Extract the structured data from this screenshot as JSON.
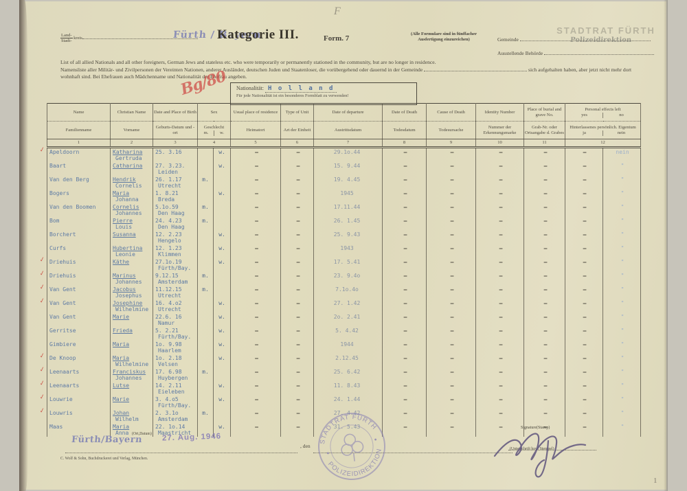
{
  "header": {
    "land_label": "Land-",
    "stadt_label": "Stadt-",
    "kreis_label": "kreis",
    "region_stamp": "Fürth / Bayern",
    "title": "Kategorie III.",
    "form_no": "Form. 7",
    "copies_note_1": "(Alle Formulare sind in fünffacher",
    "copies_note_2": "Ausfertigung einzureichen)",
    "gemeinde_label": "Gemeinde",
    "authority_stamp_1": "STADTRAT FÜRTH",
    "authority_stamp_2": "Polizeidirektion",
    "behoerde_label": "Ausstellende Behörde",
    "pencil_mark_top": "F"
  },
  "intro": {
    "en": "List of all allied Nationals and all other foreigners, German Jews and stateless etc. who were temporarily or permanently stationed in the community, but are no longer in residence.",
    "de_1": "Namensliste aller Militär- und Zivilpersonen der Vereinten Nationen, anderer Ausländer, deutschen Juden und Staatenloser, die vorübergehend oder dauernd in der Gemeinde",
    "de_blank_suffix": "sich aufgehalten haben,",
    "de_2": "aber jetzt nicht mehr dort wohnhaft sind. Bei Ehefrauen auch Mädchenname und Nationalität der Ehefrau angeben."
  },
  "red_mark": "Bg/80",
  "nationality": {
    "label": "Nationalität:",
    "value": "H o l l a n d",
    "note": "Für jede Nationalität ist ein besonderes Formblatt zu verwenden!"
  },
  "table": {
    "dash": "–",
    "headers": {
      "name": {
        "en": "Name",
        "de": "Familienname",
        "num": "1"
      },
      "vorname": {
        "en": "Christian Name",
        "de": "Vorname",
        "num": "2"
      },
      "birth": {
        "en": "Date and Place of Birth",
        "de": "Geburts-Datum und -ort",
        "num": "3"
      },
      "sex": {
        "en": "Sex",
        "de": "Geschlecht",
        "m": "m.",
        "w": "w.",
        "num": "4"
      },
      "residence": {
        "en": "Usual place of residence",
        "de": "Heimatort",
        "num": "5"
      },
      "unit": {
        "en": "Type of Unit",
        "de": "Art der Einheit",
        "num": "6"
      },
      "departure": {
        "en": "Date of departure",
        "de": "Austrittsdatum",
        "num": "7"
      },
      "death": {
        "en": "Date of Death",
        "de": "Todesdatum",
        "num": "8"
      },
      "cause": {
        "en": "Cause of Death",
        "de": "Todesursache",
        "num": "9"
      },
      "identity": {
        "en": "Identity Number",
        "de": "Nummer der Erkennungsmarke",
        "num": "10"
      },
      "burial": {
        "en": "Place of burial and grave No.",
        "de": "Grab-Nr. oder Ortsangabe d. Grabes",
        "num": "11"
      },
      "effects": {
        "en": "Personal effects left",
        "yes": "yes",
        "no": "no",
        "de": "Hinterlassenes persönlich. Eigentum",
        "ja": "ja",
        "nein": "nein",
        "num": "12"
      }
    },
    "rows": [
      {
        "check": true,
        "name": "Apeldoorn",
        "vn1": "Katharina",
        "vn2": "Gertruda",
        "bd": "25. 3.16",
        "bp": "",
        "sex": "w",
        "dep": "29.1o.44",
        "nein": "nein"
      },
      {
        "check": false,
        "name": "Baart",
        "vn1": "Catharina",
        "vn2": "",
        "bd": "27. 3.23.",
        "bp": "Leiden",
        "sex": "w",
        "dep": "15. 9.44",
        "nein": "\""
      },
      {
        "check": false,
        "name": "Van den Berg",
        "vn1": "Hendrik",
        "vn2": "Cornelis",
        "bd": "26. 1.17",
        "bp": "Utrecht",
        "sex": "m",
        "dep": "19. 4.45",
        "nein": "\""
      },
      {
        "check": false,
        "name": "Bogers",
        "vn1": "Maria",
        "vn2": "Johanna",
        "bd": "1. 8.21",
        "bp": "Breda",
        "sex": "w",
        "dep": "1945",
        "nein": "\""
      },
      {
        "check": false,
        "name": "Van den Boomen",
        "vn1": "Cornelis",
        "vn2": "Johannes",
        "bd": "5.1o.59",
        "bp": "Den Haag",
        "sex": "m",
        "dep": "17.11.44",
        "nein": "\""
      },
      {
        "check": false,
        "name": "Bom",
        "vn1": "Pierre",
        "vn2": "Louis",
        "bd": "24. 4.23",
        "bp": "Den Haag",
        "sex": "m",
        "dep": "26. 1.45",
        "nein": "\""
      },
      {
        "check": false,
        "name": "Borchert",
        "vn1": "Susanna",
        "vn2": "",
        "bd": "12. 2.23",
        "bp": "Hengelo",
        "sex": "w",
        "dep": "25. 9.43",
        "nein": "\""
      },
      {
        "check": false,
        "name": "Curfs",
        "vn1": "Hubertina",
        "vn2": "Leonie",
        "bd": "12. 1.23",
        "bp": "Klimmen",
        "sex": "w",
        "dep": "1943",
        "nein": "\""
      },
      {
        "check": true,
        "name": "Driehuis",
        "vn1": "Käthe",
        "vn2": "",
        "bd": "27.1o.19",
        "bp": "Fürth/Bay.",
        "sex": "w",
        "dep": "17. 5.41",
        "nein": "\""
      },
      {
        "check": true,
        "name": "Driehuis",
        "vn1": "Marinus",
        "vn2": "Johannes",
        "bd": "9.12.15",
        "bp": "Amsterdam",
        "sex": "m",
        "dep": "23. 9.4o",
        "nein": "\""
      },
      {
        "check": true,
        "name": "Van Gent",
        "vn1": "Jacobus",
        "vn2": "Josephus",
        "bd": "11.12.15",
        "bp": "Utrecht",
        "sex": "m",
        "dep": "7.1o.4o",
        "nein": "\""
      },
      {
        "check": true,
        "name": "Van Gent",
        "vn1": "Josephine",
        "vn2": "Wilhelmine",
        "bd": "16. 4.o2",
        "bp": "Utrecht",
        "sex": "w",
        "dep": "27. 1.42",
        "nein": "\""
      },
      {
        "check": false,
        "name": "Van Gent",
        "vn1": "Marie",
        "vn2": "",
        "bd": "22.6. 16",
        "bp": "Namur",
        "sex": "w",
        "dep": "2o. 2.41",
        "nein": "\""
      },
      {
        "check": false,
        "name": "Gerritse",
        "vn1": "Frieda",
        "vn2": "",
        "bd": "5. 2.21",
        "bp": "Fürth/Bay.",
        "sex": "w",
        "dep": "5. 4.42",
        "nein": "\""
      },
      {
        "check": false,
        "name": "Gimbiere",
        "vn1": "Maria",
        "vn2": "",
        "bd": "1o. 9.98",
        "bp": "Haarlem",
        "sex": "w",
        "dep": "1944",
        "nein": "\""
      },
      {
        "check": true,
        "name": "De Knoop",
        "vn1": "Maria",
        "vn2": "Wilhelmine",
        "bd": "1o. 2.18",
        "bp": "Velsen",
        "sex": "w",
        "dep": "2.12.45",
        "nein": "\""
      },
      {
        "check": true,
        "name": "Leenaarts",
        "vn1": "Franciskus",
        "vn2": "Johannes",
        "bd": "17. 6.98",
        "bp": "Huybergen",
        "sex": "m",
        "dep": "25. 6.42",
        "nein": "\""
      },
      {
        "check": true,
        "name": "Leenaarts",
        "vn1": "Lutse",
        "vn2": "",
        "bd": "14. 2.11",
        "bp": "Eieleben",
        "sex": "w",
        "dep": "11. 8.43",
        "nein": "\""
      },
      {
        "check": true,
        "name": "Louwrie",
        "vn1": "Marie",
        "vn2": "",
        "bd": "3. 4.o5",
        "bp": "Fürth/Bay.",
        "sex": "w",
        "dep": "24. 1.44",
        "nein": "\""
      },
      {
        "check": true,
        "name": "Louwris",
        "vn1": "Johan",
        "vn2": "Wilhelm",
        "bd": "2. 3.1o",
        "bp": "Amsterdam",
        "sex": "m",
        "dep": "27. 4.42",
        "nein": "\""
      },
      {
        "check": false,
        "name": "Maas",
        "vn1": "Maria",
        "vn2": "Anna",
        "bd": "22. 1o.14",
        "bp": "Maastricht",
        "sex": "w",
        "dep": "31. 5.43",
        "nein": "\""
      }
    ]
  },
  "footer": {
    "ort_datum_label": "(Ort,Datum)",
    "place_stamp": "Fürth/Bayern",
    "den_label": ", den",
    "date_stamp": "27. Aug. 1946",
    "signature_label": "Signature(Stamp)",
    "signature_sub": "(Unterschrift bzw. Stempel)",
    "round_stamp_top": "STADTRAT FÜRTH",
    "round_stamp_bottom": "POLIZEIDIREKTION",
    "print_note": "C. Wolf & Sohn, Buchdruckerei und Verlag, München.",
    "page_mark": "1"
  }
}
